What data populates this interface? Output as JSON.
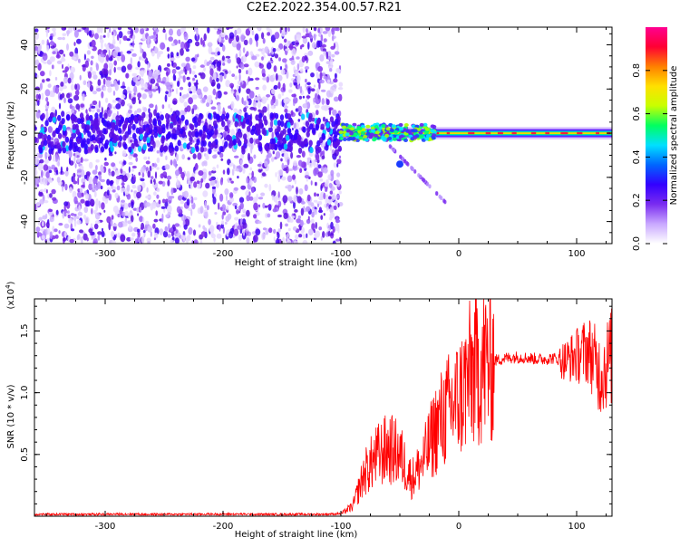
{
  "figure": {
    "title": "C2E2.2022.354.00.57.R21"
  },
  "chart_data": [
    {
      "type": "heatmap",
      "xlabel": "Height of straight line (km)",
      "ylabel": "Frequency (Hz)",
      "xlim": [
        -360,
        130
      ],
      "ylim": [
        -50,
        48
      ],
      "xticks": [
        -300,
        -200,
        -100,
        0,
        100
      ],
      "xtick_labels": [
        "-300",
        "-200",
        "-100",
        "0",
        "100"
      ],
      "yticks": [
        -40,
        -20,
        0,
        20,
        40
      ],
      "ytick_labels": [
        "-40",
        "-20",
        "0",
        "20",
        "40"
      ],
      "colorbar": {
        "label": "Normalized spectral amplitude",
        "range": [
          0.0,
          1.0
        ],
        "ticks": [
          0.0,
          0.2,
          0.4,
          0.6,
          0.8
        ],
        "tick_labels": [
          "0.0",
          "0.2",
          "0.4",
          "0.6",
          "0.8"
        ],
        "colormap": [
          "#ffffff",
          "#c9a8ff",
          "#7a2cf0",
          "#3300ff",
          "#0066ff",
          "#00e0ff",
          "#00ff60",
          "#c8ff00",
          "#ffe000",
          "#ff8000",
          "#ff0033",
          "#ff0090"
        ]
      },
      "regions": [
        {
          "x_range": [
            -360,
            -100
          ],
          "freq_range": [
            -50,
            48
          ],
          "level": 0.15
        },
        {
          "x_range": [
            -100,
            130
          ],
          "freq_center": 0,
          "freq_halfwidth": 3,
          "level": 0.75
        }
      ],
      "grid": false
    },
    {
      "type": "line",
      "xlabel": "Height of straight line (km)",
      "ylabel": "SNR (10 * v/v)",
      "y_multiplier": "(x10^4)",
      "xlim": [
        -360,
        130
      ],
      "ylim": [
        0,
        17600
      ],
      "xticks": [
        -300,
        -200,
        -100,
        0,
        100
      ],
      "xtick_labels": [
        "-300",
        "-200",
        "-100",
        "0",
        "100"
      ],
      "yticks": [
        5000,
        10000,
        15000
      ],
      "ytick_labels": [
        "0.5",
        "1.0",
        "1.5"
      ],
      "color": "#ff0000",
      "series": [
        {
          "x": [
            -360,
            -340,
            -320,
            -300,
            -280,
            -260,
            -240,
            -220,
            -200,
            -180,
            -160,
            -140,
            -120,
            -100,
            -90,
            -80,
            -70,
            -60,
            -50,
            -40,
            -30,
            -20,
            -10,
            0,
            10,
            20,
            30,
            40,
            50,
            60,
            70,
            80,
            90,
            100,
            110,
            120,
            130
          ],
          "values": [
            150,
            160,
            150,
            160,
            170,
            150,
            160,
            160,
            170,
            160,
            150,
            160,
            150,
            200,
            800,
            3500,
            4800,
            5500,
            5000,
            3000,
            4500,
            7000,
            8500,
            9500,
            11500,
            12300,
            12600,
            12800,
            12900,
            12800,
            12700,
            12800,
            12600,
            13000,
            13500,
            11500,
            13000
          ]
        }
      ],
      "grid": false
    }
  ]
}
